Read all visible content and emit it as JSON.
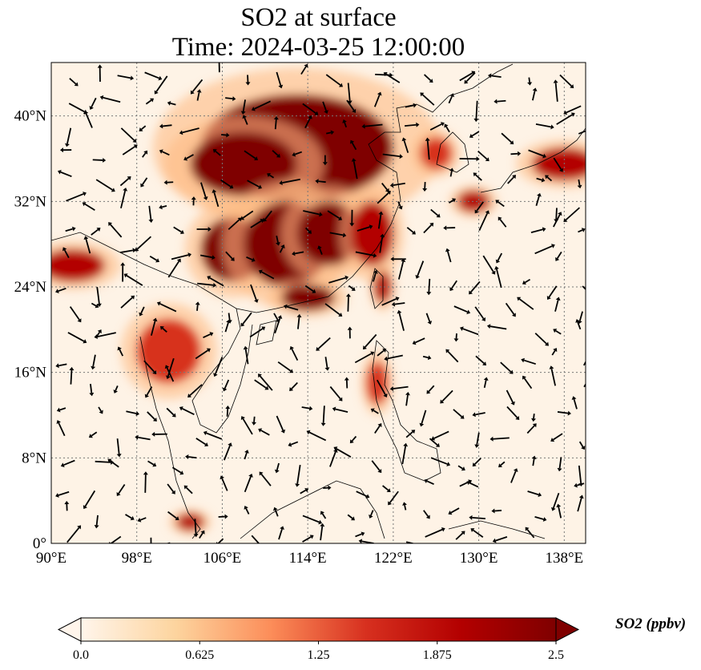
{
  "title": "SO2 at surface",
  "subtitle": "Time: 2024-03-25 12:00:00",
  "chart_data": {
    "type": "heatmap",
    "variable": "SO2",
    "units_label": "SO2 (ppbv)",
    "lon_range": [
      90,
      140
    ],
    "lat_range": [
      0,
      45
    ],
    "lon_ticks": [
      90,
      98,
      106,
      114,
      122,
      130,
      138
    ],
    "lon_tick_labels": [
      "90°E",
      "98°E",
      "106°E",
      "114°E",
      "122°E",
      "130°E",
      "138°E"
    ],
    "lat_ticks": [
      0,
      8,
      16,
      24,
      32,
      40
    ],
    "lat_tick_labels": [
      "0°",
      "8°N",
      "16°N",
      "24°N",
      "32°N",
      "40°N"
    ],
    "grid": true,
    "colorbar": {
      "min": 0,
      "max": 2.5,
      "extend": "both",
      "ticks": [
        0,
        0.625,
        1.25,
        1.875,
        2.5
      ],
      "tick_labels": [
        "0.0",
        "0.625",
        "1.25",
        "1.875",
        "2.5"
      ],
      "colors": [
        "#fff5eb",
        "#fdd49e",
        "#fc8d59",
        "#d7301f",
        "#b30000",
        "#7f0000"
      ]
    },
    "hotspots": [
      {
        "lon": 113,
        "lat": 37,
        "rx": 9,
        "ry": 5,
        "value": 2.5
      },
      {
        "lon": 108,
        "lat": 35.5,
        "rx": 5,
        "ry": 3,
        "value": 2.5
      },
      {
        "lon": 107,
        "lat": 27.5,
        "rx": 3,
        "ry": 3,
        "value": 2.5
      },
      {
        "lon": 112,
        "lat": 28,
        "rx": 4,
        "ry": 4,
        "value": 2.3
      },
      {
        "lon": 116,
        "lat": 29,
        "rx": 3,
        "ry": 3,
        "value": 2.3
      },
      {
        "lon": 114,
        "lat": 23,
        "rx": 2.5,
        "ry": 1.2,
        "value": 2.5
      },
      {
        "lon": 120,
        "lat": 29,
        "rx": 2,
        "ry": 3,
        "value": 2.0
      },
      {
        "lon": 121,
        "lat": 24,
        "rx": 0.8,
        "ry": 1.5,
        "value": 2.0
      },
      {
        "lon": 92,
        "lat": 26,
        "rx": 3,
        "ry": 1.5,
        "value": 2.2
      },
      {
        "lon": 101,
        "lat": 18,
        "rx": 3,
        "ry": 3,
        "value": 1.6
      },
      {
        "lon": 129.5,
        "lat": 32,
        "rx": 1.5,
        "ry": 1,
        "value": 1.8
      },
      {
        "lon": 138,
        "lat": 35.5,
        "rx": 3,
        "ry": 1.5,
        "value": 1.8
      },
      {
        "lon": 126,
        "lat": 36.5,
        "rx": 1.5,
        "ry": 1.5,
        "value": 1.7
      },
      {
        "lon": 120.5,
        "lat": 15,
        "rx": 1,
        "ry": 2,
        "value": 1.5
      },
      {
        "lon": 103,
        "lat": 2,
        "rx": 1.3,
        "ry": 0.8,
        "value": 1.8
      }
    ]
  }
}
